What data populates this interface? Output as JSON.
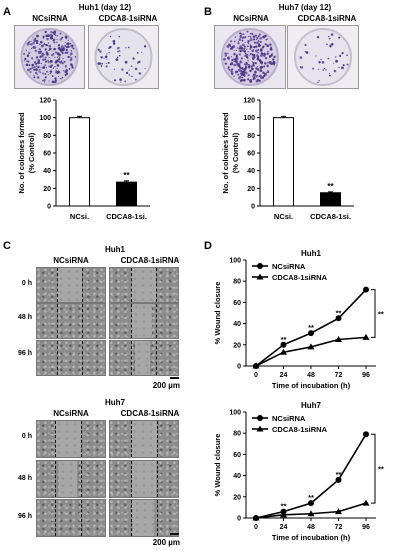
{
  "panels": {
    "A": "A",
    "B": "B",
    "C": "C",
    "D": "D"
  },
  "panel_A": {
    "title": "Huh1 (day 12)",
    "dish_labels": [
      "NCsiRNA",
      "CDCA8-1siRNA"
    ]
  },
  "panel_B": {
    "title": "Huh7 (day 12)",
    "dish_labels": [
      "NCsiRNA",
      "CDCA8-1siRNA"
    ]
  },
  "panel_C": {
    "blocks": [
      {
        "title": "Huh1",
        "col_labels": [
          "NCsiRNA",
          "CDCA8-1siRNA"
        ],
        "row_labels": [
          "0 h",
          "48 h",
          "96 h"
        ],
        "scale_label": "200 µm"
      },
      {
        "title": "Huh7",
        "col_labels": [
          "NCsiRNA",
          "CDCA8-1siRNA"
        ],
        "row_labels": [
          "0 h",
          "48 h",
          "96 h"
        ],
        "scale_label": "200 µm"
      }
    ]
  },
  "chart_data": [
    {
      "id": "A-bar",
      "type": "bar",
      "categories": [
        "NCsi.",
        "CDCA8-1si."
      ],
      "values": [
        100,
        27
      ],
      "errors": [
        1.5,
        1.5
      ],
      "fills": [
        "#ffffff",
        "#000000"
      ],
      "ylabel_lines": [
        "No. of colonies formed",
        "(% Control)"
      ],
      "yticks": [
        0,
        20,
        40,
        60,
        80,
        100,
        120
      ],
      "ylim": [
        0,
        120
      ],
      "annotations": [
        {
          "category": 1,
          "text": "**"
        }
      ]
    },
    {
      "id": "B-bar",
      "type": "bar",
      "categories": [
        "NCsi.",
        "CDCA8-1si."
      ],
      "values": [
        100,
        15
      ],
      "errors": [
        1.5,
        1
      ],
      "fills": [
        "#ffffff",
        "#000000"
      ],
      "ylabel_lines": [
        "No. of colonies formed",
        "(% Control)"
      ],
      "yticks": [
        0,
        20,
        40,
        60,
        80,
        100,
        120
      ],
      "ylim": [
        0,
        120
      ],
      "annotations": [
        {
          "category": 1,
          "text": "**"
        }
      ]
    },
    {
      "id": "D-Huh1",
      "type": "line",
      "title": "Huh1",
      "x": [
        0,
        24,
        48,
        72,
        96
      ],
      "series": [
        {
          "name": "NCsiRNA",
          "marker": "circle",
          "values": [
            0,
            20,
            31,
            45,
            72
          ]
        },
        {
          "name": "CDCA8-1siRNA",
          "marker": "triangle",
          "values": [
            0,
            13,
            18,
            25,
            27
          ]
        }
      ],
      "xlabel": "Time of incubation (h)",
      "ylabel": "% Wound closure",
      "yticks": [
        0,
        20,
        40,
        60,
        80,
        100
      ],
      "ylim": [
        0,
        100
      ],
      "point_annotations": [
        {
          "x": 24,
          "text": "**"
        },
        {
          "x": 48,
          "text": "**"
        },
        {
          "x": 72,
          "text": "**"
        }
      ],
      "bracket_text": "**",
      "legend": "top-left"
    },
    {
      "id": "D-Huh7",
      "type": "line",
      "title": "Huh7",
      "x": [
        0,
        24,
        48,
        72,
        96
      ],
      "series": [
        {
          "name": "NCsiRNA",
          "marker": "circle",
          "values": [
            0,
            6,
            14,
            36,
            79
          ]
        },
        {
          "name": "CDCA8-1siRNA",
          "marker": "triangle",
          "values": [
            0,
            3,
            4,
            6,
            14
          ]
        }
      ],
      "xlabel": "Time of incubation (h)",
      "ylabel": "% Wound closure",
      "yticks": [
        0,
        20,
        40,
        60,
        80,
        100
      ],
      "ylim": [
        0,
        100
      ],
      "point_annotations": [
        {
          "x": 24,
          "text": "**"
        },
        {
          "x": 48,
          "text": "**"
        },
        {
          "x": 72,
          "text": "**"
        }
      ],
      "bracket_text": "**",
      "legend": "top-left"
    }
  ]
}
